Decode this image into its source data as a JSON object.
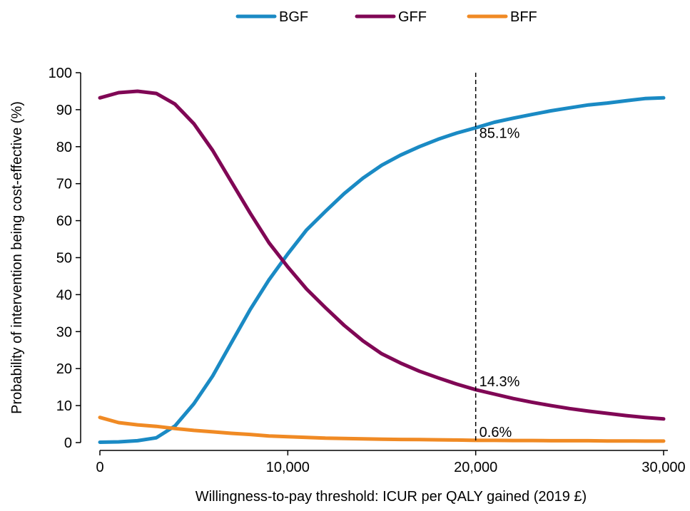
{
  "chart_data": {
    "type": "line",
    "xlabel": "Willingness-to-pay threshold: ICUR per QALY gained (2019 £)",
    "ylabel": "Probability of intervention being cost-effective (%)",
    "xlim": [
      0,
      30000
    ],
    "ylim": [
      0,
      100
    ],
    "x_ticks": [
      0,
      10000,
      20000,
      30000
    ],
    "x_tick_labels": [
      "0",
      "10,000",
      "20,000",
      "30,000"
    ],
    "y_ticks": [
      0,
      10,
      20,
      30,
      40,
      50,
      60,
      70,
      80,
      90,
      100
    ],
    "y_tick_labels": [
      "0",
      "10",
      "20",
      "30",
      "40",
      "50",
      "60",
      "70",
      "80",
      "90",
      "100"
    ],
    "grid": false,
    "legend_position": "top",
    "x": [
      0,
      1000,
      2000,
      3000,
      4000,
      5000,
      6000,
      7000,
      8000,
      9000,
      10000,
      11000,
      12000,
      13000,
      14000,
      15000,
      16000,
      17000,
      18000,
      19000,
      20000,
      21000,
      22000,
      23000,
      24000,
      25000,
      26000,
      27000,
      28000,
      29000,
      30000
    ],
    "series": [
      {
        "name": "BGF",
        "color": "#1a8ac4",
        "values": [
          0.1,
          0.2,
          0.5,
          1.3,
          4.5,
          10.5,
          18,
          27,
          36,
          44,
          51,
          57.5,
          62.5,
          67.3,
          71.5,
          75,
          77.7,
          80,
          82,
          83.7,
          85.1,
          86.6,
          87.7,
          88.7,
          89.7,
          90.5,
          91.3,
          91.8,
          92.4,
          93,
          93.2
        ]
      },
      {
        "name": "GFF",
        "color": "#800755",
        "values": [
          93.2,
          94.6,
          95,
          94.4,
          91.5,
          86.2,
          79,
          70.5,
          62,
          54,
          47.5,
          41.5,
          36.5,
          31.7,
          27.5,
          24,
          21.5,
          19.3,
          17.5,
          15.8,
          14.3,
          13.1,
          11.9,
          10.9,
          10,
          9.2,
          8.5,
          7.9,
          7.3,
          6.8,
          6.4
        ]
      },
      {
        "name": "BFF",
        "color": "#f08a24",
        "values": [
          6.8,
          5.4,
          4.8,
          4.4,
          3.8,
          3.3,
          2.9,
          2.5,
          2.2,
          1.8,
          1.6,
          1.4,
          1.2,
          1.1,
          1.0,
          0.9,
          0.85,
          0.8,
          0.75,
          0.7,
          0.6,
          0.6,
          0.55,
          0.55,
          0.5,
          0.5,
          0.5,
          0.45,
          0.45,
          0.4,
          0.4
        ]
      }
    ],
    "reference_line": {
      "x": 20000,
      "style": "dashed"
    },
    "annotations": [
      {
        "text": "85.1%",
        "x": 20000,
        "y": 85.1
      },
      {
        "text": "14.3%",
        "x": 20000,
        "y": 14.3
      },
      {
        "text": "0.6%",
        "x": 20000,
        "y": 0.6
      }
    ]
  }
}
